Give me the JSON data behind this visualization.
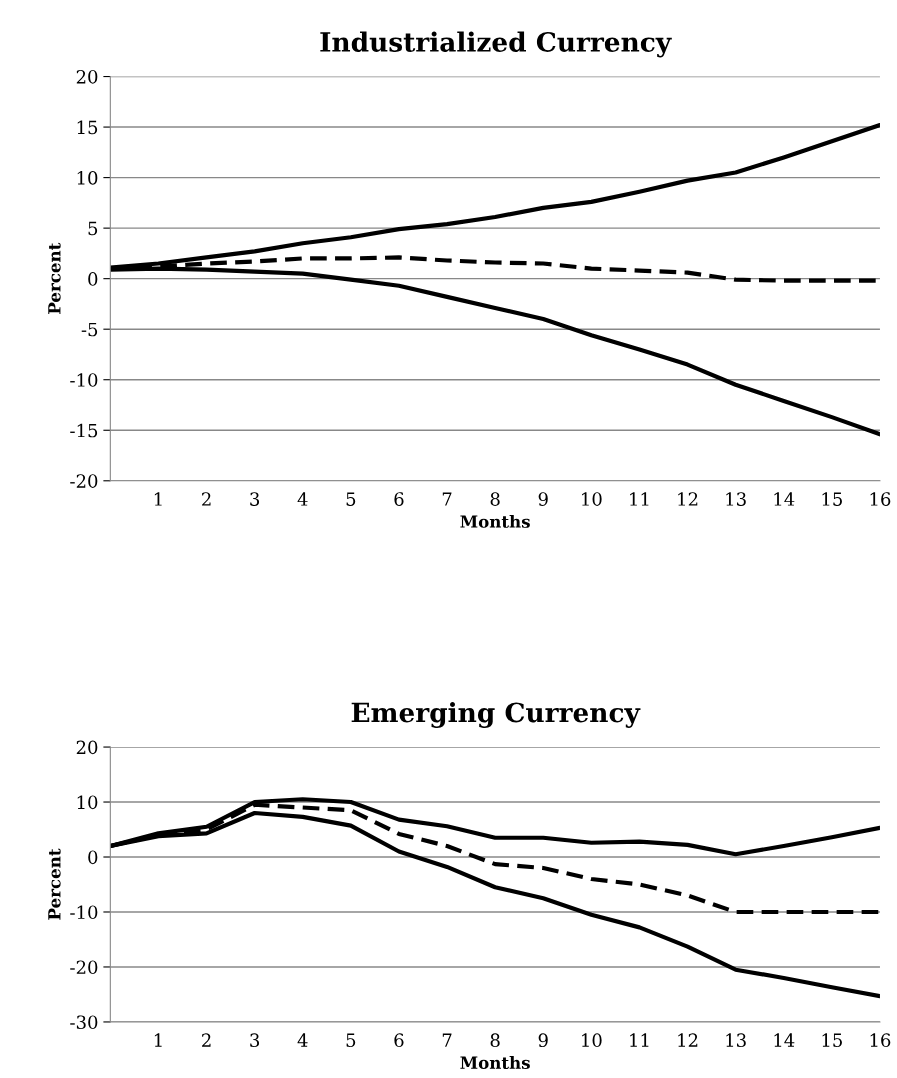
{
  "chart_data": [
    {
      "type": "line",
      "title": "Industrialized Currency",
      "xlabel": "Months",
      "ylabel": "Percent",
      "categories": [
        null,
        "1",
        "2",
        "3",
        "4",
        "5",
        "6",
        "7",
        "8",
        "9",
        "10",
        "11",
        "12",
        "13",
        "14",
        "15",
        "16"
      ],
      "ylim": [
        -20,
        20
      ],
      "yticks": [
        -20,
        -15,
        -10,
        -5,
        0,
        5,
        10,
        15,
        20
      ],
      "grid": "y",
      "marker": "none",
      "series": [
        {
          "color": "#000000",
          "line_style": "solid",
          "values": [
            1.1,
            1.5,
            2.1,
            2.7,
            3.5,
            4.1,
            4.9,
            5.4,
            6.1,
            7.0,
            7.6,
            8.6,
            9.7,
            10.5,
            12.0,
            13.6,
            15.2
          ]
        },
        {
          "color": "#000000",
          "line_style": "dashed",
          "values": [
            1.0,
            1.2,
            1.5,
            1.7,
            2.0,
            2.0,
            2.1,
            1.8,
            1.6,
            1.5,
            1.0,
            0.8,
            0.6,
            -0.1,
            -0.2,
            -0.2,
            -0.2
          ]
        },
        {
          "color": "#000000",
          "line_style": "solid",
          "values": [
            0.9,
            1.0,
            0.9,
            0.7,
            0.5,
            -0.1,
            -0.7,
            -1.8,
            -2.9,
            -4.0,
            -5.6,
            -7.0,
            -8.5,
            -10.5,
            -12.1,
            -13.7,
            -15.4
          ]
        }
      ]
    },
    {
      "type": "line",
      "title": "Emerging Currency",
      "xlabel": "Months",
      "ylabel": "Percent",
      "categories": [
        null,
        "1",
        "2",
        "3",
        "4",
        "5",
        "6",
        "7",
        "8",
        "9",
        "10",
        "11",
        "12",
        "13",
        "14",
        "15",
        "16"
      ],
      "ylim": [
        -30,
        20
      ],
      "yticks": [
        -30,
        -20,
        -10,
        0,
        10,
        20
      ],
      "grid": "y",
      "marker": "none",
      "series": [
        {
          "color": "#000000",
          "line_style": "solid",
          "values": [
            2,
            4.3,
            5.5,
            10,
            10.5,
            10,
            6.8,
            5.6,
            3.5,
            3.5,
            2.6,
            2.8,
            2.2,
            0.5,
            2,
            3.6,
            5.3
          ]
        },
        {
          "color": "#000000",
          "line_style": "dashed",
          "values": [
            2,
            4,
            5,
            9.5,
            9,
            8.5,
            4.2,
            2,
            -1.3,
            -2,
            -4,
            -5,
            -7,
            -10,
            -10,
            -10,
            -10
          ]
        },
        {
          "color": "#000000",
          "line_style": "solid",
          "values": [
            2,
            3.8,
            4.3,
            8,
            7.3,
            5.7,
            1,
            -1.8,
            -5.5,
            -7.5,
            -10.5,
            -12.8,
            -16.3,
            -20.5,
            -22,
            -23.7,
            -25.3
          ]
        }
      ]
    }
  ]
}
